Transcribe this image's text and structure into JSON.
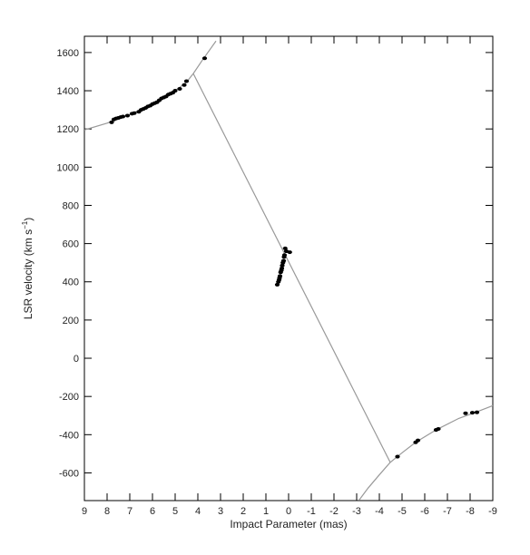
{
  "chart_data": {
    "type": "scatter",
    "x_label": "Impact Parameter (mas)",
    "y_label": {
      "text": "LSR velocity (km s",
      "superscript": "−1",
      "end": ")"
    },
    "xlim": [
      9,
      -9
    ],
    "ylim": [
      -745,
      1685
    ],
    "xticks": [
      9,
      8,
      7,
      6,
      5,
      4,
      3,
      2,
      1,
      0,
      -1,
      -2,
      -3,
      -4,
      -5,
      -6,
      -7,
      -8,
      -9
    ],
    "yticks": [
      -600,
      -400,
      -200,
      0,
      200,
      400,
      600,
      800,
      1000,
      1200,
      1400,
      1600
    ],
    "series": [
      {
        "style": "line",
        "color": "#999999",
        "x": [
          9,
          8,
          7,
          6,
          5,
          4.5,
          4.2,
          3.8,
          3.5,
          3.2
        ],
        "values": [
          1195,
          1230,
          1275,
          1330,
          1400,
          1445,
          1490,
          1560,
          1610,
          1660
        ]
      },
      {
        "style": "line",
        "color": "#999999",
        "x": [
          4.2,
          -4.48
        ],
        "values": [
          1490,
          -545
        ]
      },
      {
        "style": "line",
        "color": "#999999",
        "x": [
          -3.1,
          -3.5,
          -4,
          -4.48,
          -5,
          -5.6,
          -6.5,
          -7.5,
          -8.2,
          -9
        ],
        "values": [
          -744,
          -680,
          -610,
          -545,
          -495,
          -440,
          -375,
          -315,
          -285,
          -248
        ]
      },
      {
        "style": "points",
        "color": "#000000",
        "x": [
          7.8,
          7.7,
          7.6,
          7.5,
          7.4,
          7.3,
          7.1,
          6.9,
          6.8,
          6.6,
          6.5,
          6.4,
          6.3,
          6.2,
          6.1,
          6.0,
          5.9,
          5.8,
          5.7,
          5.6,
          5.5,
          5.4,
          5.3,
          5.2,
          5.1,
          5.0,
          4.8,
          4.6,
          4.5,
          3.7,
          0.15,
          0.1,
          0.18,
          0.2,
          0.22,
          0.25,
          0.28,
          0.3,
          0.32,
          0.35,
          0.38,
          0.4,
          0.42,
          0.45,
          0.5,
          -0.05,
          -4.8,
          -5.6,
          -5.7,
          -6.5,
          -6.6,
          -7.8,
          -8.1,
          -8.3
        ],
        "values": [
          1235,
          1250,
          1255,
          1258,
          1262,
          1265,
          1270,
          1280,
          1283,
          1290,
          1300,
          1305,
          1310,
          1318,
          1322,
          1330,
          1335,
          1340,
          1350,
          1360,
          1365,
          1370,
          1380,
          1385,
          1390,
          1400,
          1410,
          1430,
          1450,
          1570,
          575,
          560,
          540,
          530,
          510,
          500,
          485,
          470,
          460,
          450,
          430,
          420,
          410,
          400,
          385,
          555,
          -515,
          -440,
          -430,
          -375,
          -370,
          -288,
          -285,
          -283
        ]
      }
    ]
  }
}
